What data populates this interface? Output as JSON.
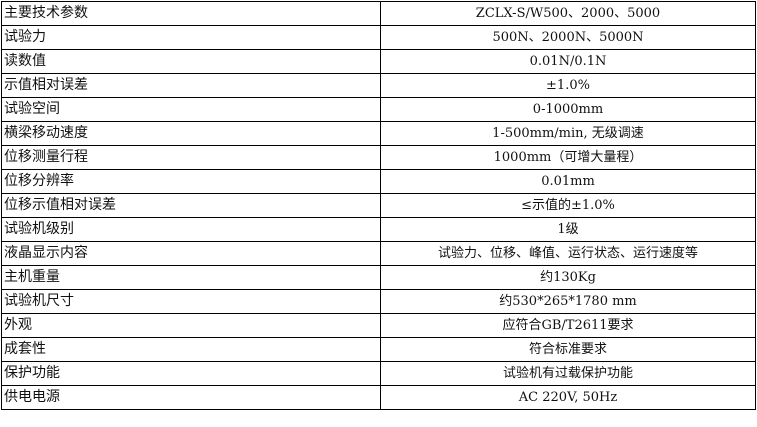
{
  "rows": [
    {
      "label": "主要技术参数",
      "value": "ZCLX-S/W500、2000、5000"
    },
    {
      "label": "试验力",
      "value": "500N、2000N、5000N"
    },
    {
      "label": "读数值",
      "value": "0.01N/0.1N"
    },
    {
      "label": "示值相对误差",
      "value": "±1.0%"
    },
    {
      "label": "试验空间",
      "value": "0-1000mm"
    },
    {
      "label": "横梁移动速度",
      "value": "1-500mm/min, 无级调速"
    },
    {
      "label": "位移测量行程",
      "value": "1000mm（可增大量程）"
    },
    {
      "label": "位移分辨率",
      "value": "0.01mm"
    },
    {
      "label": "位移示值相对误差",
      "value": "≤示值的±1.0%"
    },
    {
      "label": "试验机级别",
      "value": "1级"
    },
    {
      "label": "液晶显示内容",
      "value": "试验力、位移、峰值、运行状态、运行速度等"
    },
    {
      "label": "主机重量",
      "value": "约130Kg"
    },
    {
      "label": "试验机尺寸",
      "value": "约530*265*1780 mm"
    },
    {
      "label": "外观",
      "value": "应符合GB/T2611要求"
    },
    {
      "label": "成套性",
      "value": "符合标准要求"
    },
    {
      "label": "保护功能",
      "value": "试验机有过载保护功能"
    },
    {
      "label": "供电电源",
      "value": "AC 220V, 50Hz"
    }
  ]
}
